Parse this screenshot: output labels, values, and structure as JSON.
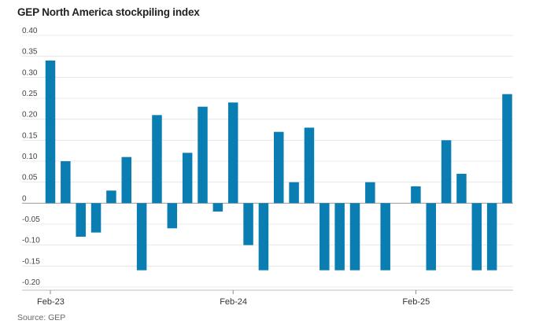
{
  "chart_data": {
    "type": "bar",
    "title": "GEP North America stockpiling index",
    "source": "Source: GEP",
    "ylim": [
      -0.2,
      0.4
    ],
    "yticks": [
      0.4,
      0.35,
      0.3,
      0.25,
      0.2,
      0.15,
      0.1,
      0.05,
      0,
      -0.05,
      -0.1,
      -0.15,
      -0.2
    ],
    "ytick_labels": [
      "0.40",
      "0.35",
      "0.30",
      "0.25",
      "0.20",
      "0.15",
      "0.10",
      "0.05",
      "0",
      "-0.05",
      "-0.10",
      "-0.15",
      "-0.20"
    ],
    "x_labels": [
      {
        "label": "Feb-23",
        "index": 0
      },
      {
        "label": "Feb-24",
        "index": 12
      },
      {
        "label": "Feb-25",
        "index": 24
      }
    ],
    "categories": [
      "2023-02",
      "2023-03",
      "2023-04",
      "2023-05",
      "2023-06",
      "2023-07",
      "2023-08",
      "2023-09",
      "2023-10",
      "2023-11",
      "2023-12",
      "2024-01",
      "2024-02",
      "2024-03",
      "2024-04",
      "2024-05",
      "2024-06",
      "2024-07",
      "2024-08",
      "2024-09",
      "2024-10",
      "2024-11",
      "2024-12",
      "2025-01",
      "2025-02",
      "2025-03",
      "2025-04",
      "2025-05",
      "2025-06",
      "2025-07",
      "2025-08",
      "2025-09"
    ],
    "values": [
      0.34,
      0.1,
      -0.08,
      -0.07,
      0.03,
      0.11,
      -0.16,
      0.21,
      -0.06,
      0.12,
      0.23,
      -0.02,
      0.24,
      -0.1,
      -0.16,
      0.17,
      0.05,
      0.18,
      -0.16,
      -0.16,
      -0.16,
      0.05,
      -0.16,
      0,
      0.04,
      -0.16,
      0.15,
      0.07,
      -0.16,
      -0.16,
      0.26,
      0
    ],
    "bar_color": "#0a7db3",
    "grid_color": "#e4e4e4",
    "grid": true,
    "legend": "none"
  }
}
